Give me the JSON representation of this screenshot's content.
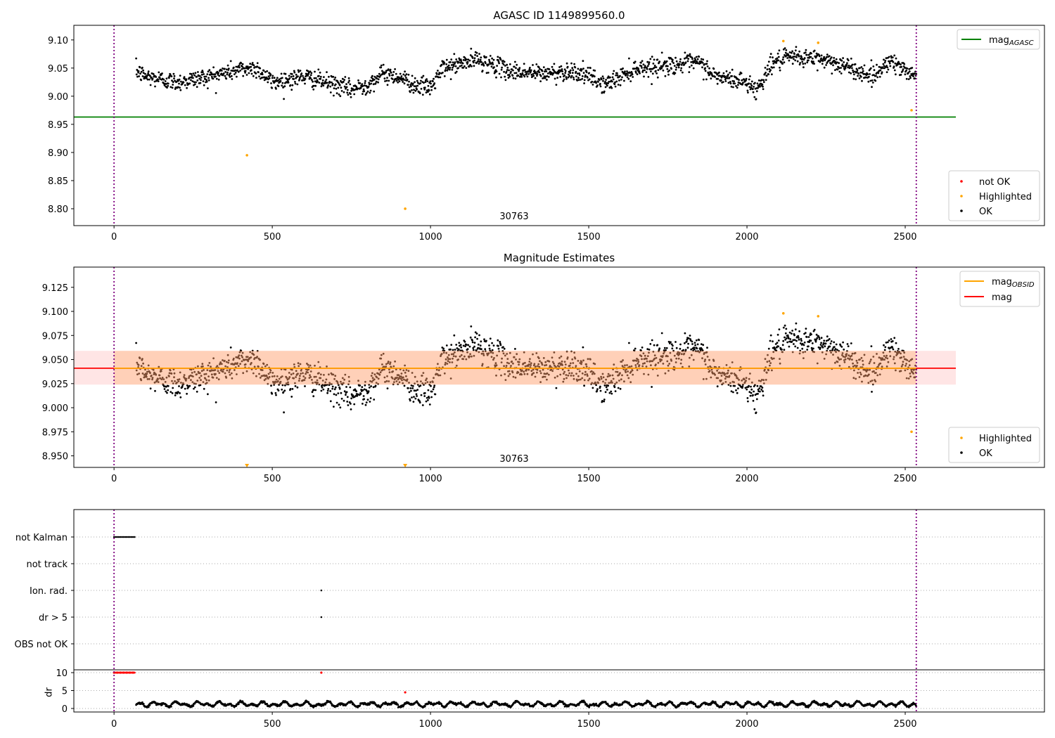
{
  "chart_data": [
    {
      "type": "scatter",
      "title": "AGASC ID 1149899560.0",
      "xlim": [
        -127,
        2940
      ],
      "ylim": [
        8.77,
        9.126
      ],
      "xticks": [
        0,
        500,
        1000,
        1500,
        2000,
        2500
      ],
      "yticks": [
        8.8,
        8.85,
        8.9,
        8.95,
        9.0,
        9.05,
        9.1
      ],
      "annotation": "30763",
      "annotation_x": 1260,
      "hlines": [
        {
          "name": "mag_AGASC",
          "y": 8.963,
          "x_end": 2660,
          "color": "#008000"
        }
      ],
      "legend_lines": [
        {
          "label": "mag",
          "sub": "AGASC",
          "color": "#008000"
        }
      ],
      "legend_points": [
        {
          "label": "not OK",
          "color": "#ff0000"
        },
        {
          "label": "Highlighted",
          "color": "#ffa500"
        },
        {
          "label": "OK",
          "color": "#000000"
        }
      ]
    },
    {
      "type": "scatter",
      "title": "Magnitude Estimates",
      "xlim": [
        -127,
        2940
      ],
      "ylim": [
        8.938,
        9.146
      ],
      "xticks": [
        0,
        500,
        1000,
        1500,
        2000,
        2500
      ],
      "yticks": [
        8.95,
        8.975,
        9.0,
        9.025,
        9.05,
        9.075,
        9.1,
        9.125
      ],
      "annotation": "30763",
      "annotation_x": 1260,
      "mag": 9.041,
      "band": [
        9.024,
        9.059
      ],
      "band_x_end": 2660,
      "legend_lines": [
        {
          "label": "mag",
          "sub": "OBSID",
          "color": "#ffa500"
        },
        {
          "label": "mag",
          "sub": "",
          "color": "#ff0000"
        }
      ],
      "legend_points": [
        {
          "label": "Highlighted",
          "color": "#ffa500"
        },
        {
          "label": "OK",
          "color": "#000000"
        }
      ]
    },
    {
      "type": "scatter",
      "flags": [
        "not Kalman",
        "not track",
        "Ion. rad.",
        "dr > 5",
        "OBS not OK"
      ],
      "flag_points": {
        "not Kalman": [
          [
            0,
            65
          ]
        ],
        "Ion. rad.": [
          [
            655,
            655
          ]
        ],
        "dr > 5": [
          [
            655,
            655
          ]
        ]
      },
      "dr_label": "dr",
      "dr_ylim": [
        -1,
        10.5
      ],
      "dr_yticks": [
        0,
        5,
        10
      ],
      "dr_red": [
        [
          0,
          10
        ],
        [
          10,
          10
        ],
        [
          20,
          10
        ],
        [
          30,
          10
        ],
        [
          40,
          10
        ],
        [
          50,
          10
        ],
        [
          60,
          10
        ],
        [
          655,
          10
        ],
        [
          920,
          4.5
        ]
      ],
      "dr_range": [
        0.3,
        2.2
      ]
    }
  ],
  "series": {
    "x_start": 70,
    "x_end": 2535,
    "step": 1.3,
    "noise": 0.008,
    "knots": [
      [
        70,
        9.045
      ],
      [
        100,
        9.035
      ],
      [
        200,
        9.025
      ],
      [
        300,
        9.035
      ],
      [
        400,
        9.048
      ],
      [
        450,
        9.05
      ],
      [
        500,
        9.025
      ],
      [
        600,
        9.035
      ],
      [
        700,
        9.02
      ],
      [
        750,
        9.012
      ],
      [
        800,
        9.02
      ],
      [
        850,
        9.04
      ],
      [
        900,
        9.035
      ],
      [
        950,
        9.02
      ],
      [
        1000,
        9.015
      ],
      [
        1040,
        9.05
      ],
      [
        1150,
        9.065
      ],
      [
        1250,
        9.045
      ],
      [
        1350,
        9.04
      ],
      [
        1450,
        9.045
      ],
      [
        1500,
        9.035
      ],
      [
        1550,
        9.02
      ],
      [
        1650,
        9.05
      ],
      [
        1750,
        9.055
      ],
      [
        1850,
        9.06
      ],
      [
        1900,
        9.035
      ],
      [
        2000,
        9.025
      ],
      [
        2030,
        9.01
      ],
      [
        2080,
        9.06
      ],
      [
        2150,
        9.07
      ],
      [
        2250,
        9.065
      ],
      [
        2300,
        9.055
      ],
      [
        2400,
        9.035
      ],
      [
        2450,
        9.065
      ],
      [
        2500,
        9.045
      ],
      [
        2535,
        9.04
      ]
    ],
    "highlighted": [
      [
        420,
        8.895
      ],
      [
        920,
        8.8
      ],
      [
        2115,
        9.098
      ],
      [
        2225,
        9.095
      ],
      [
        2520,
        8.975
      ]
    ],
    "vlines": [
      0,
      2535
    ]
  }
}
